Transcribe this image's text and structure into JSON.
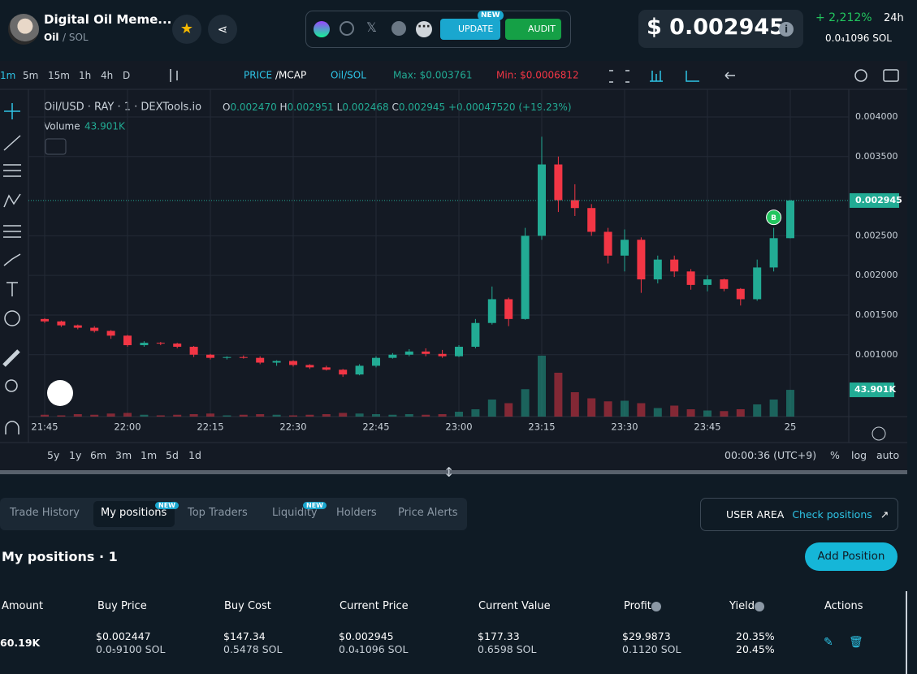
{
  "header": {
    "title": "Digital Oil Meme...",
    "symbol": "Oil",
    "pair": "/ SOL",
    "update": "UPDATE",
    "update_badge": "NEW",
    "audit": "AUDIT",
    "price": "$ 0.002945",
    "change": "+ 2,212%",
    "period": "24h",
    "price_sol": "0.0₄1096 SOL"
  },
  "toolbar": {
    "intervals": [
      "1m",
      "5m",
      "15m",
      "1h",
      "4h",
      "D"
    ],
    "price": "PRICE",
    "mcap": "/MCAP",
    "pair": "Oil/SOL",
    "max": "Max: $0.003761",
    "min": "Min: $0.0006812"
  },
  "legend": {
    "title": "Oil/USD · RAY · 1 · DEXTools.io",
    "o": "O",
    "open": "0.002470",
    "h": "H",
    "high": "0.002951",
    "l": "L",
    "low": "0.002468",
    "c": "C",
    "close": "0.002945",
    "change": "+0.00047520 (+19.23%)",
    "volume": "Volume",
    "volume_value": "43.901K",
    "price_label": "0.002945",
    "volume_label": "43.901K",
    "buy_marker": "B"
  },
  "chart_data": {
    "type": "candlestick",
    "categories": [
      "21:45",
      null,
      null,
      null,
      null,
      "22:00",
      null,
      null,
      null,
      null,
      "22:15",
      null,
      null,
      null,
      null,
      "22:30",
      null,
      null,
      null,
      null,
      "22:45",
      null,
      null,
      null,
      null,
      "23:00",
      null,
      null,
      null,
      null,
      "23:15",
      null,
      null,
      null,
      null,
      "23:30",
      null,
      null,
      null,
      null,
      "23:45",
      null,
      null,
      null,
      null,
      "25"
    ],
    "open": [
      0.00145,
      0.00142,
      0.00137,
      0.00134,
      0.0013,
      0.00124,
      0.00112,
      0.00115,
      0.00114,
      0.0011,
      0.001,
      0.00096,
      0.00097,
      0.00096,
      0.0009,
      0.00092,
      0.00087,
      0.00084,
      0.00081,
      0.00075,
      0.00086,
      0.00096,
      0.001,
      0.00104,
      0.00101,
      0.00098,
      0.0011,
      0.0014,
      0.0017,
      0.00145,
      0.0025,
      0.0034,
      0.00295,
      0.00285,
      0.00255,
      0.00225,
      0.00245,
      0.00195,
      0.0022,
      0.00205,
      0.00188,
      0.00195,
      0.00183,
      0.0017,
      0.0021,
      0.00247
    ],
    "high": [
      0.00146,
      0.00143,
      0.00138,
      0.00136,
      0.00131,
      0.00125,
      0.00117,
      0.00116,
      0.00115,
      0.00111,
      0.00101,
      0.00098,
      0.00099,
      0.00098,
      0.00093,
      0.00093,
      0.00088,
      0.00086,
      0.00082,
      0.00088,
      0.00098,
      0.00102,
      0.00107,
      0.00108,
      0.00106,
      0.00112,
      0.00145,
      0.00186,
      0.00172,
      0.0026,
      0.00375,
      0.0035,
      0.00315,
      0.0029,
      0.0026,
      0.00258,
      0.00248,
      0.00225,
      0.00225,
      0.00208,
      0.002,
      0.00196,
      0.00184,
      0.0022,
      0.0026,
      0.002951
    ],
    "low": [
      0.0014,
      0.00135,
      0.00132,
      0.00128,
      0.0012,
      0.0011,
      0.0011,
      0.00112,
      0.00108,
      0.00097,
      0.00094,
      0.00094,
      0.00095,
      0.00088,
      0.00086,
      0.00085,
      0.00082,
      0.0008,
      0.00072,
      0.00074,
      0.00084,
      0.00095,
      0.00098,
      0.00098,
      0.00096,
      0.00097,
      0.00108,
      0.00138,
      0.00136,
      0.00144,
      0.00245,
      0.0028,
      0.00275,
      0.0025,
      0.00215,
      0.00205,
      0.00178,
      0.0019,
      0.00198,
      0.00182,
      0.0018,
      0.0018,
      0.00162,
      0.00168,
      0.00205,
      0.002468
    ],
    "close": [
      0.00142,
      0.00137,
      0.00134,
      0.0013,
      0.00124,
      0.00112,
      0.00115,
      0.00114,
      0.0011,
      0.001,
      0.00096,
      0.00097,
      0.00096,
      0.0009,
      0.00092,
      0.00087,
      0.00084,
      0.00081,
      0.00075,
      0.00086,
      0.00096,
      0.001,
      0.00104,
      0.00101,
      0.00098,
      0.0011,
      0.0014,
      0.0017,
      0.00145,
      0.0025,
      0.0034,
      0.00295,
      0.00285,
      0.00255,
      0.00225,
      0.00245,
      0.00195,
      0.0022,
      0.00205,
      0.00188,
      0.00195,
      0.00183,
      0.0017,
      0.0021,
      0.00247,
      0.002945
    ],
    "volume": [
      3,
      2,
      4,
      3,
      5,
      6,
      3,
      2,
      3,
      4,
      5,
      2,
      3,
      4,
      3,
      2,
      3,
      4,
      6,
      5,
      4,
      3,
      4,
      3,
      4,
      8,
      12,
      28,
      22,
      45,
      100,
      72,
      40,
      30,
      25,
      26,
      22,
      14,
      18,
      12,
      10,
      9,
      12,
      20,
      28,
      43.901
    ],
    "up_color": "#22ab94",
    "down_color": "#f23645",
    "ylim": [
      0.000219,
      0.004266
    ],
    "yticks": [
      {
        "value": 0.004,
        "label": "0.004000"
      },
      {
        "value": 0.0035,
        "label": "0.003500"
      },
      {
        "value": 0.0025,
        "label": "0.002500"
      },
      {
        "value": 0.002,
        "label": "0.002000"
      },
      {
        "value": 0.0015,
        "label": "0.001500"
      },
      {
        "value": 0.001,
        "label": "0.001000"
      }
    ],
    "grid": true
  },
  "chart_footer": {
    "ranges": [
      "5y",
      "1y",
      "6m",
      "3m",
      "1m",
      "5d",
      "1d"
    ],
    "clock": "00:00:36 (UTC+9)",
    "percent": "%",
    "log": "log",
    "auto": "auto"
  },
  "tabs": [
    {
      "label": "Trade History"
    },
    {
      "label": "My positions",
      "badge": "NEW"
    },
    {
      "label": "Top Traders"
    },
    {
      "label": "Liquidity",
      "badge": "NEW"
    },
    {
      "label": "Holders"
    },
    {
      "label": "Price Alerts"
    }
  ],
  "user_area": {
    "label": "USER AREA",
    "link": "Check positions"
  },
  "positions": {
    "title": "My positions · 1",
    "add": "Add Position",
    "headers": [
      "Amount",
      "Buy Price",
      "Buy Cost",
      "Current Price",
      "Current Value",
      "Profit",
      "Yield",
      "Actions"
    ],
    "row": {
      "amount": "60.19K",
      "buy_price": "$0.002447",
      "buy_price_sol": "0.0₅9100 SOL",
      "buy_cost": "$147.34",
      "buy_cost_sol": "0.5478 SOL",
      "current_price": "$0.002945",
      "current_price_sol": "0.0₄1096 SOL",
      "current_value": "$177.33",
      "current_value_sol": "0.6598 SOL",
      "profit": "$29.9873",
      "profit_sol": "0.1120 SOL",
      "yield": "20.35%",
      "yield_sol": "20.45%"
    }
  }
}
